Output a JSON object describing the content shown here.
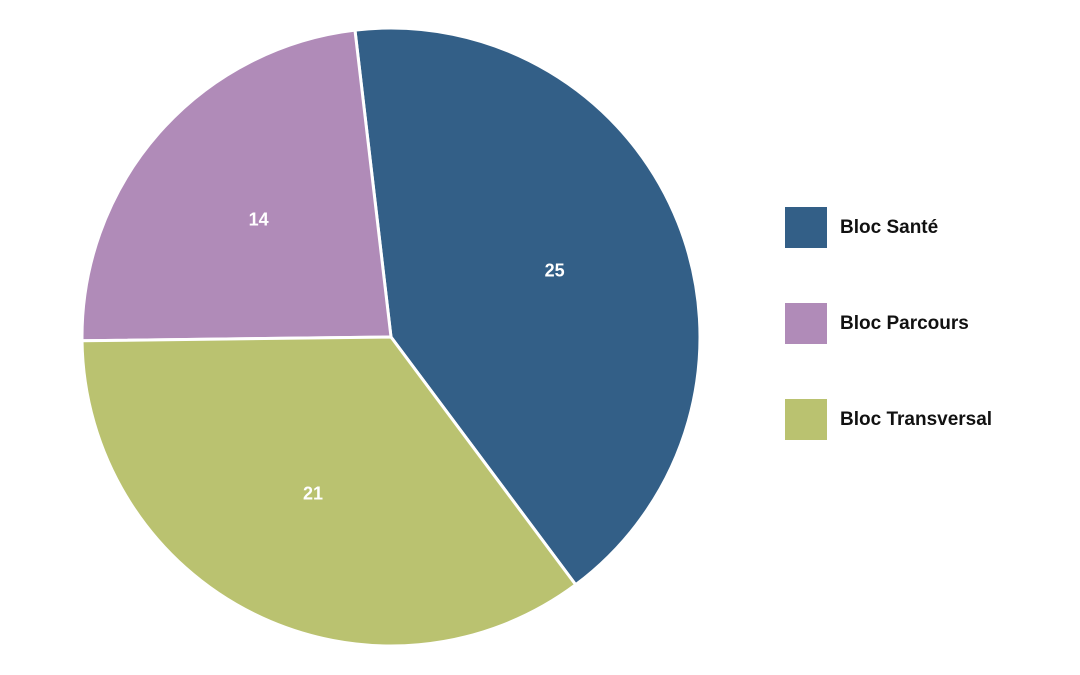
{
  "chart_data": {
    "type": "pie",
    "categories": [
      "Bloc Santé",
      "Bloc Parcours",
      "Bloc Transversal"
    ],
    "values": [
      25,
      14,
      21
    ],
    "colors": [
      "#335f87",
      "#b08bb8",
      "#bac270"
    ],
    "legend": "right"
  }
}
